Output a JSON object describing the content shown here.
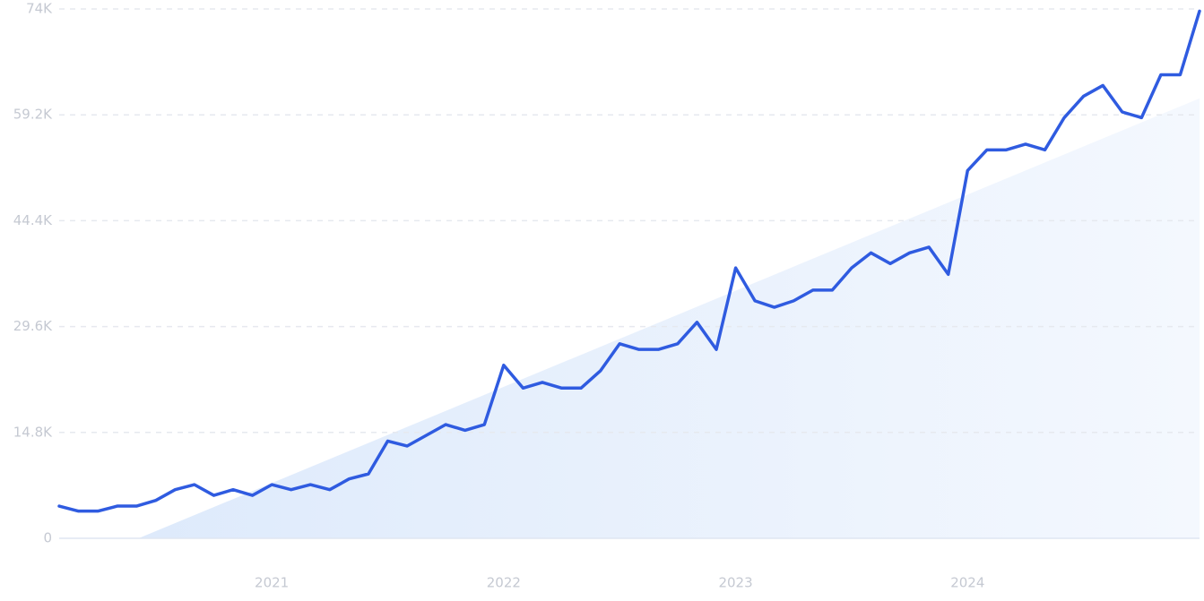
{
  "chart_data": {
    "type": "line",
    "categories": [
      null,
      null,
      null,
      null,
      null,
      null,
      null,
      null,
      null,
      null,
      null,
      "2021",
      null,
      null,
      null,
      null,
      null,
      null,
      null,
      null,
      null,
      null,
      null,
      "2022",
      null,
      null,
      null,
      null,
      null,
      null,
      null,
      null,
      null,
      null,
      null,
      "2023",
      null,
      null,
      null,
      null,
      null,
      null,
      null,
      null,
      null,
      null,
      null,
      "2024",
      null,
      null,
      null,
      null,
      null,
      null,
      null,
      null,
      null,
      null,
      null,
      null
    ],
    "series": [
      {
        "color": "#2f5be0",
        "values": [
          4500,
          3800,
          3800,
          4500,
          4500,
          5300,
          6800,
          7500,
          6000,
          6800,
          6000,
          7500,
          6800,
          7500,
          6800,
          8300,
          9000,
          13600,
          12900,
          14400,
          15900,
          15100,
          15900,
          24200,
          21000,
          21800,
          21000,
          21000,
          23400,
          27200,
          26400,
          26400,
          27200,
          30200,
          26400,
          37800,
          33200,
          32300,
          33200,
          34700,
          34700,
          37800,
          39900,
          38400,
          39900,
          40700,
          36900,
          51400,
          54300,
          54300,
          55100,
          54300,
          58800,
          61800,
          63300,
          59600,
          58800,
          64800,
          64800,
          73700
        ]
      }
    ],
    "trend": [
      -4600,
      61500
    ],
    "trend_color": "#dce9fb",
    "ylim": [
      0,
      74000
    ],
    "yticks": [
      0,
      {
        "value": 14800,
        "label": "14.8K"
      },
      {
        "value": 29600,
        "label": "29.6K"
      },
      {
        "value": 44400,
        "label": "44.4K"
      },
      {
        "value": 59200,
        "label": "59.2K"
      },
      {
        "value": 74000,
        "label": "74K"
      }
    ],
    "grid": true
  }
}
